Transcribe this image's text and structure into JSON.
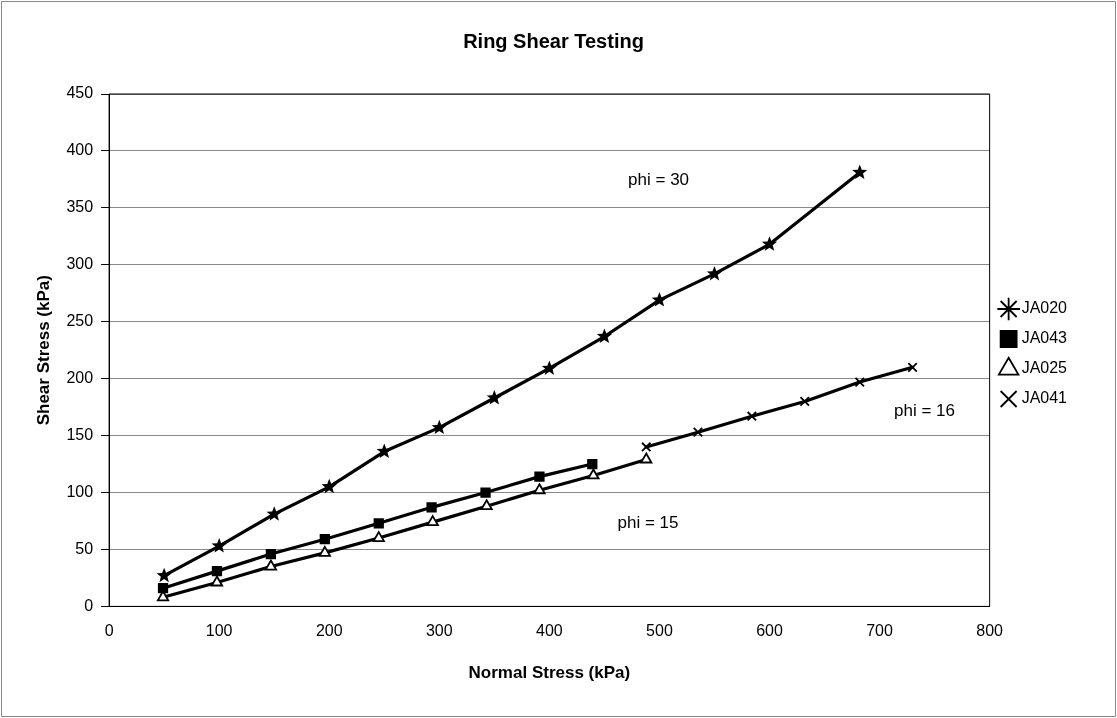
{
  "chart_data": {
    "type": "line",
    "title": "Ring Shear Testing",
    "xlabel": "Normal Stress (kPa)",
    "ylabel": "Shear Stress (kPa)",
    "xlim": [
      0,
      800
    ],
    "xticks": [
      0,
      100,
      200,
      300,
      400,
      500,
      600,
      700,
      800
    ],
    "ylim": [
      0,
      450
    ],
    "yticks": [
      0,
      50,
      100,
      150,
      200,
      250,
      300,
      350,
      400,
      450
    ],
    "grid": "y",
    "legend": "right",
    "line_style": "solid",
    "series": [
      {
        "name": "JA020",
        "color": "#000000",
        "marker": "star",
        "x": [
          50,
          100,
          150,
          200,
          250,
          300,
          350,
          400,
          450,
          500,
          550,
          600,
          682
        ],
        "values": [
          27,
          53,
          81,
          105,
          136,
          157,
          183,
          209,
          237,
          269,
          292,
          318,
          381
        ]
      },
      {
        "name": "JA043",
        "color": "#000000",
        "marker": "square",
        "x": [
          49,
          98,
          147,
          196,
          245,
          293,
          342,
          391,
          439
        ],
        "values": [
          16,
          31,
          46,
          59,
          73,
          87,
          100,
          114,
          125
        ]
      },
      {
        "name": "JA025",
        "color": "#000000",
        "marker": "triangle",
        "x": [
          49,
          98,
          147,
          196,
          245,
          294,
          343,
          391,
          440,
          488
        ],
        "values": [
          8,
          21,
          35,
          47,
          60,
          74,
          88,
          102,
          115,
          129
        ]
      },
      {
        "name": "JA041",
        "color": "#000000",
        "marker": "cross",
        "x": [
          488,
          535,
          584,
          632,
          682,
          730
        ],
        "values": [
          140,
          153,
          167,
          180,
          197,
          210
        ]
      }
    ],
    "annotations": [
      "phi = 30",
      "phi = 16",
      "phi = 15"
    ]
  }
}
